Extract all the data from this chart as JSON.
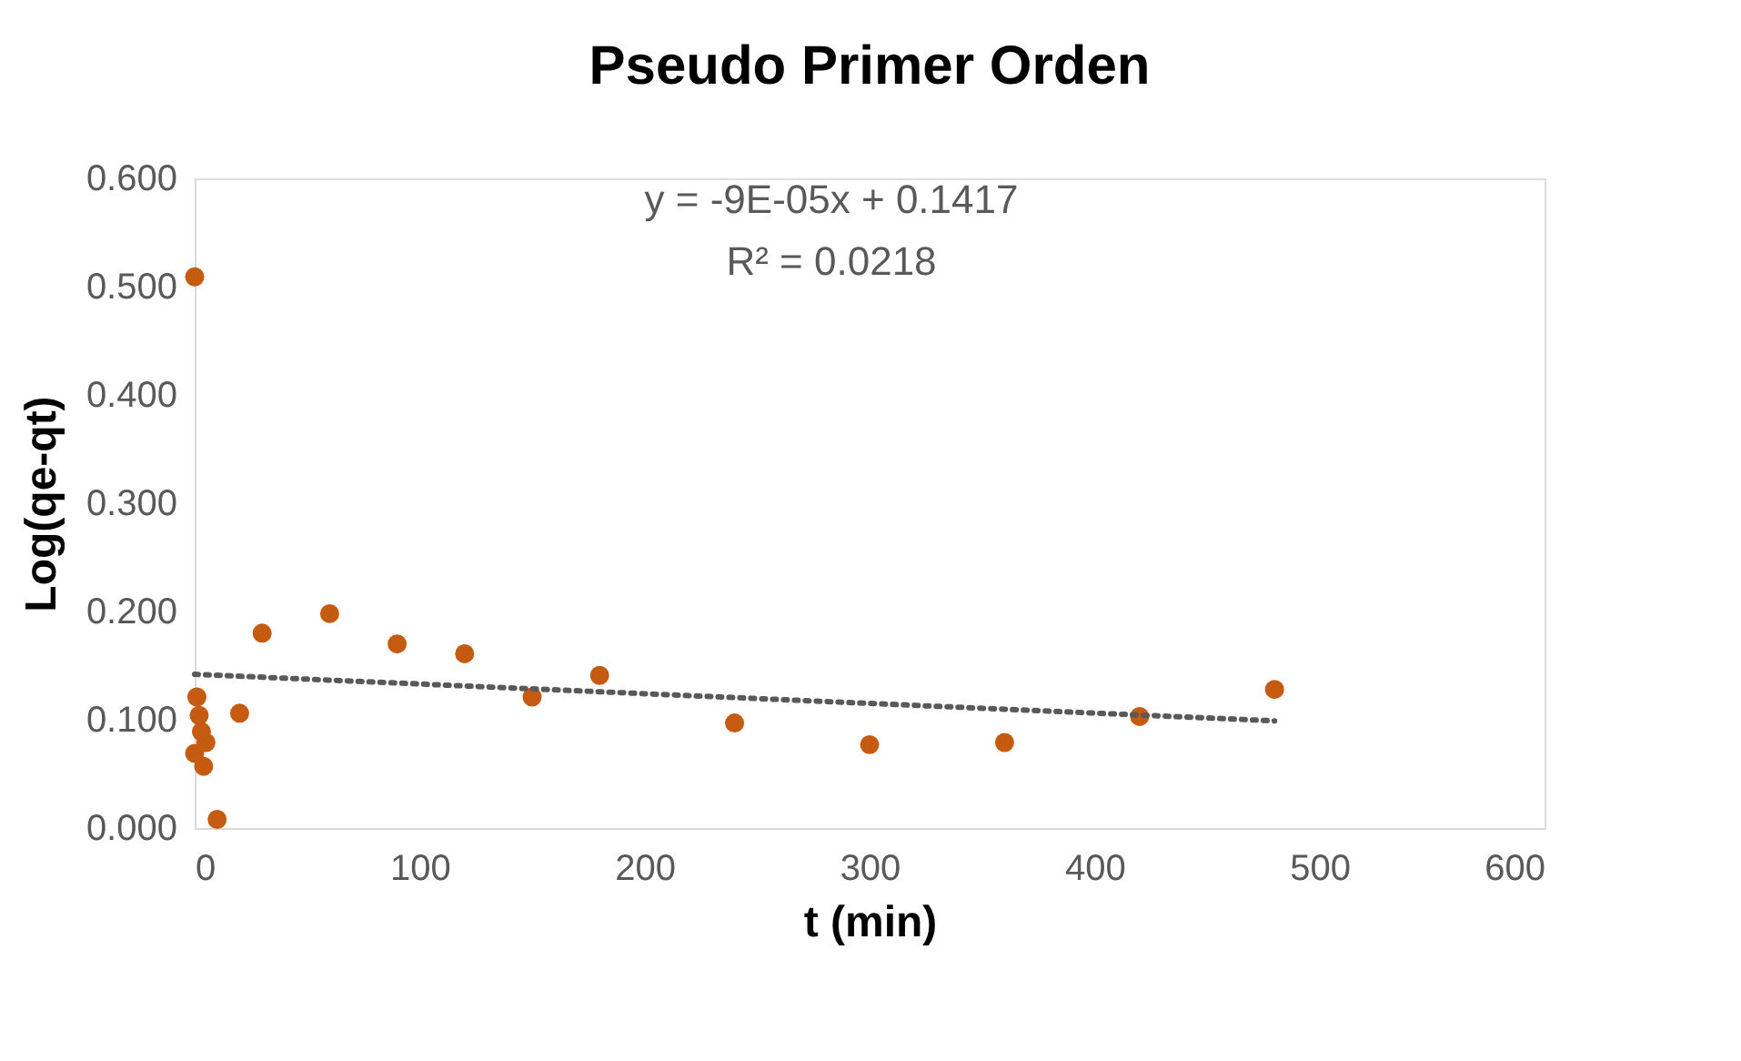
{
  "chart_data": {
    "type": "scatter",
    "title": "Pseudo Primer Orden",
    "xlabel": "t (min)",
    "ylabel": "Log(qe-qt)",
    "series": [
      {
        "color": "#c55a11",
        "marker": "circle",
        "x": [
          0,
          0,
          1,
          2,
          3,
          4,
          5,
          10,
          20,
          30,
          60,
          90,
          120,
          150,
          180,
          240,
          300,
          360,
          420,
          480
        ],
        "values": [
          0.509,
          0.069,
          0.121,
          0.104,
          0.089,
          0.057,
          0.079,
          0.008,
          0.106,
          0.18,
          0.198,
          0.17,
          0.161,
          0.121,
          0.141,
          0.097,
          0.077,
          0.079,
          0.103,
          0.128
        ]
      },
      {
        "type": "line",
        "color": "#595959",
        "line_style": "dotted",
        "x": [
          0,
          480
        ],
        "values": [
          0.142,
          0.099
        ]
      }
    ],
    "annotations": [
      "y = -9E-05x + 0.1417",
      "R² = 0.0218"
    ],
    "xlim": [
      0,
      600
    ],
    "xticks": [
      0,
      100,
      200,
      300,
      400,
      500,
      600
    ],
    "ylim": [
      0,
      0.6
    ],
    "yticks": [
      {
        "value": 0,
        "label": "0.000"
      },
      {
        "value": 0.1,
        "label": "0.100"
      },
      {
        "value": 0.2,
        "label": "0.200"
      },
      {
        "value": 0.3,
        "label": "0.300"
      },
      {
        "value": 0.4,
        "label": "0.400"
      },
      {
        "value": 0.5,
        "label": "0.500"
      },
      {
        "value": 0.6,
        "label": "0.600"
      }
    ]
  }
}
